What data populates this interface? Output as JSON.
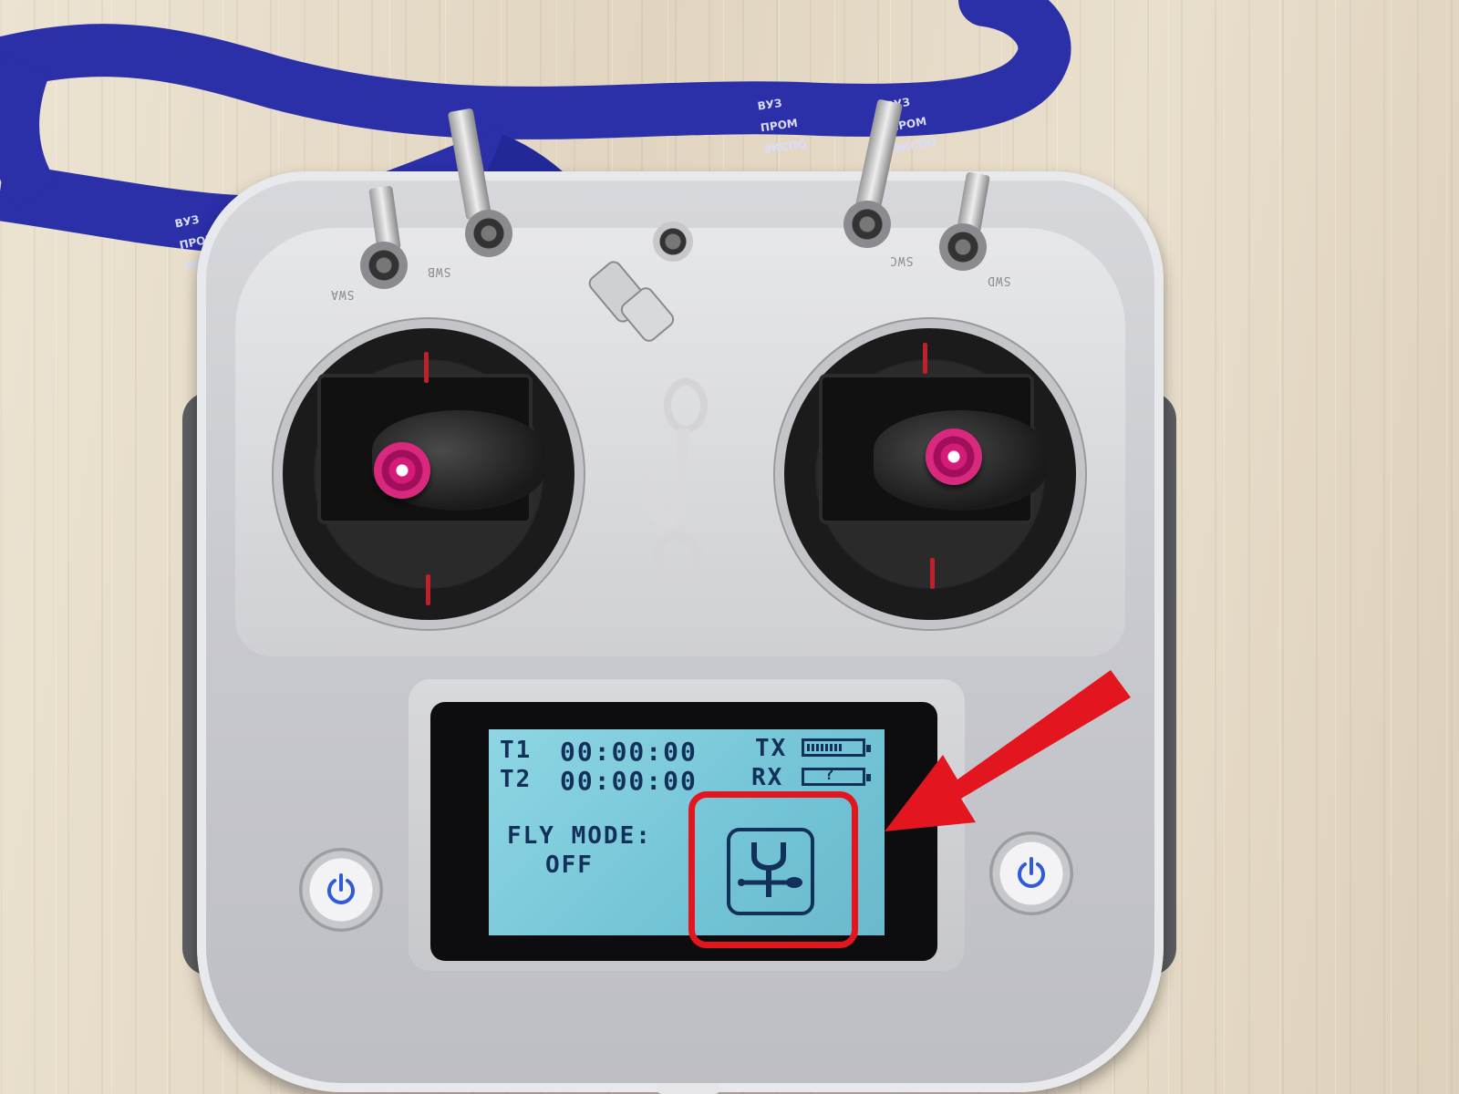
{
  "lanyard": {
    "text_lines": [
      "ВУЗ",
      "ПРОМ",
      "ЭКСПО"
    ],
    "color": "#2b2fa8"
  },
  "transmitter": {
    "switches": [
      {
        "id": "swa",
        "label": "SWA"
      },
      {
        "id": "swb",
        "label": "SWB"
      },
      {
        "id": "swc",
        "label": "SWC"
      },
      {
        "id": "swd",
        "label": "SWD"
      }
    ],
    "stick_color": "#d51b7a",
    "power_buttons": [
      {
        "id": "power-left",
        "icon": "power-icon"
      },
      {
        "id": "power-right",
        "icon": "power-icon"
      }
    ]
  },
  "screen": {
    "timer1_label": "T1",
    "timer1_value": "00:00:00",
    "timer2_label": "T2",
    "timer2_value": "00:00:00",
    "tx_label": "TX",
    "rx_label": "RX",
    "rx_value": "?",
    "fly_mode_label": "FLY MODE:",
    "fly_mode_value": "OFF",
    "menu_icon": "setup-wrench-screwdriver-icon",
    "lcd_color": "#7fcddf"
  },
  "annotation": {
    "highlight_color": "#e3161f",
    "arrow": "red-arrow-pointing-to-setup-icon"
  }
}
